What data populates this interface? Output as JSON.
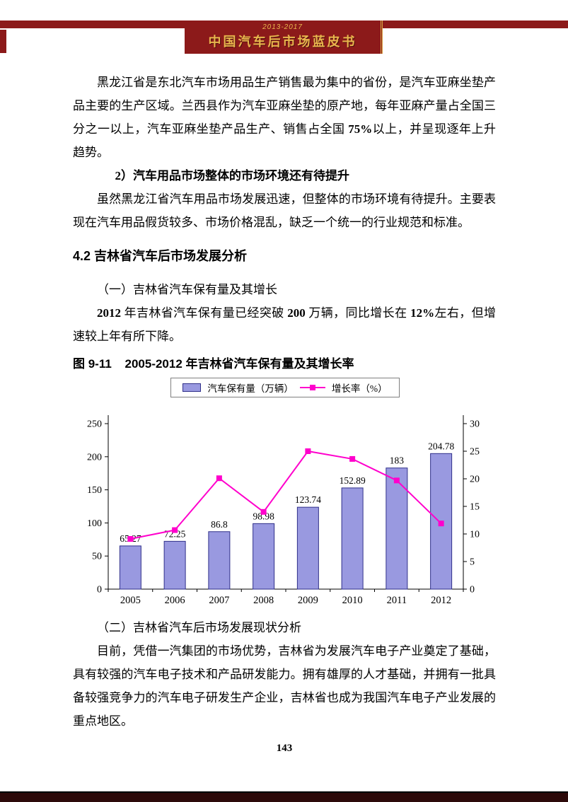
{
  "header": {
    "years": "2013-2017",
    "title": "中国汽车后市场蓝皮书"
  },
  "theme": {
    "band_red": "#8C1A1A",
    "gold": "#E9B54D",
    "footer_dark": "#2D0A0A",
    "bar_fill": "#9999E0",
    "bar_border": "#30308A",
    "line_magenta": "#FF00CC"
  },
  "content": {
    "para1": {
      "t1": "黑龙江省是东北汽车市场用品生产销售最为集中的省份，是汽车亚麻坐垫产品主要的生产区域。兰西县作为汽车亚麻坐垫的原产地，每年亚麻产量占全国三分之一以上，汽车亚麻坐垫产品生产、销售占全国 ",
      "b1": "75%",
      "t2": "以上，并呈现逐年上升趋势。"
    },
    "heading2": "2）汽车用品市场整体的市场环境还有待提升",
    "para2": "虽然黑龙江省汽车用品市场发展迅速，但整体的市场环境有待提升。主要表现在汽车用品假货较多、市场价格混乱，缺乏一个统一的行业规范和标准。",
    "section": "4.2  吉林省汽车后市场发展分析",
    "sub1": "（一）吉林省汽车保有量及其增长",
    "para3": {
      "b1": "2012",
      "t1": " 年吉林省汽车保有量已经突破 ",
      "b2": "200",
      "t2": " 万辆，同比增长在 ",
      "b3": "12%",
      "t3": "左右，但增速较上年有所下降。"
    },
    "figure_label": "图 9-11",
    "figure_title": "2005-2012 年吉林省汽车保有量及其增长率",
    "sub2": "（二）吉林省汽车后市场发展现状分析",
    "para4": "目前，凭借一汽集团的市场优势，吉林省为发展汽车电子产业奠定了基础，具有较强的汽车电子技术和产品研发能力。拥有雄厚的人才基础，并拥有一批具备较强竞争力的汽车电子研发生产企业，吉林省也成为我国汽车电子产业发展的重点地区。",
    "page_number": "143"
  },
  "chart_data": {
    "type": "bar+line",
    "title": "2005-2012 年吉林省汽车保有量及其增长率",
    "categories": [
      "2005",
      "2006",
      "2007",
      "2008",
      "2009",
      "2010",
      "2011",
      "2012"
    ],
    "series": [
      {
        "name": "汽车保有量（万辆）",
        "type": "bar",
        "axis": "left",
        "values": [
          65.27,
          72.25,
          86.8,
          98.98,
          123.74,
          152.89,
          183,
          204.78
        ],
        "labels": [
          "65.27",
          "72.25",
          "86.8",
          "98.98",
          "123.74",
          "152.89",
          "183",
          "204.78"
        ],
        "color": "#9999E0",
        "border": "#30308A"
      },
      {
        "name": "增长率（%）",
        "type": "line",
        "axis": "right",
        "values": [
          9.1,
          10.7,
          20.1,
          14,
          25,
          23.6,
          19.7,
          11.9
        ],
        "color": "#FF00CC"
      }
    ],
    "left_axis": {
      "min": 0,
      "max": 250,
      "step": 50
    },
    "right_axis": {
      "min": 0,
      "max": 30,
      "step": 5
    },
    "legend_position": "top",
    "grid": false
  }
}
